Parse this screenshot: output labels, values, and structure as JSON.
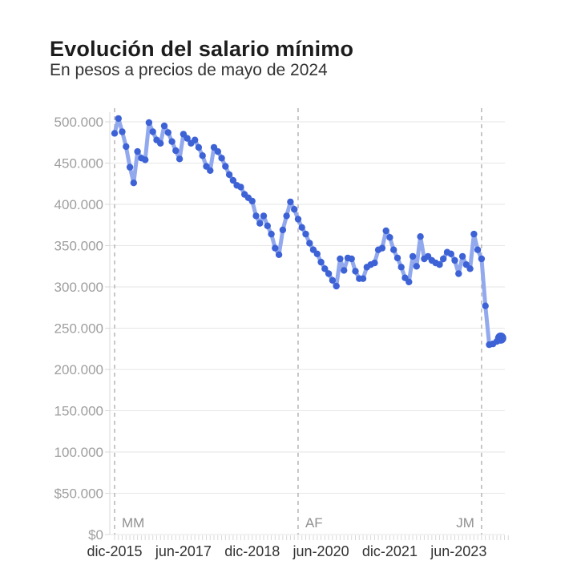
{
  "header": {
    "title": "Evolución del salario mínimo",
    "subtitle": "En pesos a precios de mayo de 2024"
  },
  "chart_data": {
    "type": "line",
    "title": "Evolución del salario mínimo",
    "subtitle": "En pesos a precios de mayo de 2024",
    "frequency": "monthly",
    "x_start": "dic-2015",
    "x_end": "may-2024",
    "ylim": [
      0,
      500000
    ],
    "y_ticks": [
      {
        "value": 0,
        "label": "$0"
      },
      {
        "value": 50000,
        "label": "$50.000"
      },
      {
        "value": 100000,
        "label": "100.000"
      },
      {
        "value": 150000,
        "label": "150.000"
      },
      {
        "value": 200000,
        "label": "200.000"
      },
      {
        "value": 250000,
        "label": "250.000"
      },
      {
        "value": 300000,
        "label": "300.000"
      },
      {
        "value": 350000,
        "label": "350.000"
      },
      {
        "value": 400000,
        "label": "400.000"
      },
      {
        "value": 450000,
        "label": "450.000"
      },
      {
        "value": 500000,
        "label": "500.000"
      }
    ],
    "x_tick_labels": [
      {
        "label": "dic-2015",
        "month_index": 0
      },
      {
        "label": "jun-2017",
        "month_index": 18
      },
      {
        "label": "dic-2018",
        "month_index": 36
      },
      {
        "label": "jun-2020",
        "month_index": 54
      },
      {
        "label": "dic-2021",
        "month_index": 72
      },
      {
        "label": "jun-2023",
        "month_index": 90
      }
    ],
    "annotations": [
      {
        "label": "MM",
        "month_index": 0,
        "side": "right"
      },
      {
        "label": "AF",
        "month_index": 48,
        "side": "right"
      },
      {
        "label": "JM",
        "month_index": 96,
        "side": "left"
      }
    ],
    "values": [
      486000,
      504000,
      488000,
      470000,
      445000,
      426000,
      464000,
      456000,
      454000,
      499000,
      488000,
      478000,
      474000,
      495000,
      487000,
      476000,
      465000,
      455000,
      485000,
      480000,
      474000,
      478000,
      469000,
      459000,
      446000,
      441000,
      469000,
      464000,
      456000,
      446000,
      436000,
      429000,
      423000,
      421000,
      412000,
      408000,
      404000,
      386000,
      377000,
      386000,
      374000,
      364000,
      347000,
      339000,
      369000,
      386000,
      403000,
      394000,
      382000,
      372000,
      364000,
      353000,
      345000,
      340000,
      330000,
      322000,
      316000,
      308000,
      301000,
      334000,
      320000,
      335000,
      334000,
      319000,
      310000,
      310000,
      324000,
      327000,
      329000,
      345000,
      347000,
      368000,
      360000,
      345000,
      335000,
      324000,
      311000,
      306000,
      337000,
      325000,
      361000,
      334000,
      337000,
      332000,
      329000,
      327000,
      334000,
      342000,
      340000,
      332000,
      316000,
      337000,
      327000,
      322000,
      364000,
      345000,
      334000,
      277000,
      230000,
      231000,
      234000,
      238000
    ],
    "grid": true,
    "legend": "none"
  },
  "colors": {
    "line": "#92a9ee",
    "dot": "#3d62d6",
    "grid": "#e6e6e6",
    "axis": "#d8d8d8",
    "dashed_line": "#b5b5b5",
    "y_label": "#9e9e9e",
    "x_label": "#333333",
    "annotation_label": "#909090",
    "title": "#1c1c1c",
    "subtitle": "#333333"
  }
}
